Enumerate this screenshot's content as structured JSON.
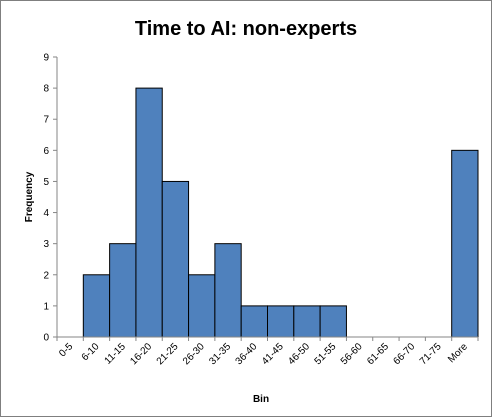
{
  "chart_data": {
    "type": "bar",
    "title": "Time to AI: non-experts",
    "xlabel": "Bin",
    "ylabel": "Frequency",
    "ylim": [
      0,
      9
    ],
    "yticks": [
      0,
      1,
      2,
      3,
      4,
      5,
      6,
      7,
      8,
      9
    ],
    "grid": false,
    "legend": "none",
    "categories": [
      "0-5",
      "6-10",
      "11-15",
      "16-20",
      "21-25",
      "26-30",
      "31-35",
      "36-40",
      "41-45",
      "46-50",
      "51-55",
      "56-60",
      "61-65",
      "66-70",
      "71-75",
      "More"
    ],
    "values": [
      0,
      2,
      3,
      8,
      5,
      2,
      3,
      1,
      1,
      1,
      1,
      0,
      0,
      0,
      0,
      6
    ],
    "colors": {
      "bar_fill": "#4f81bd",
      "bar_stroke": "#000000",
      "axis": "#868686"
    }
  }
}
